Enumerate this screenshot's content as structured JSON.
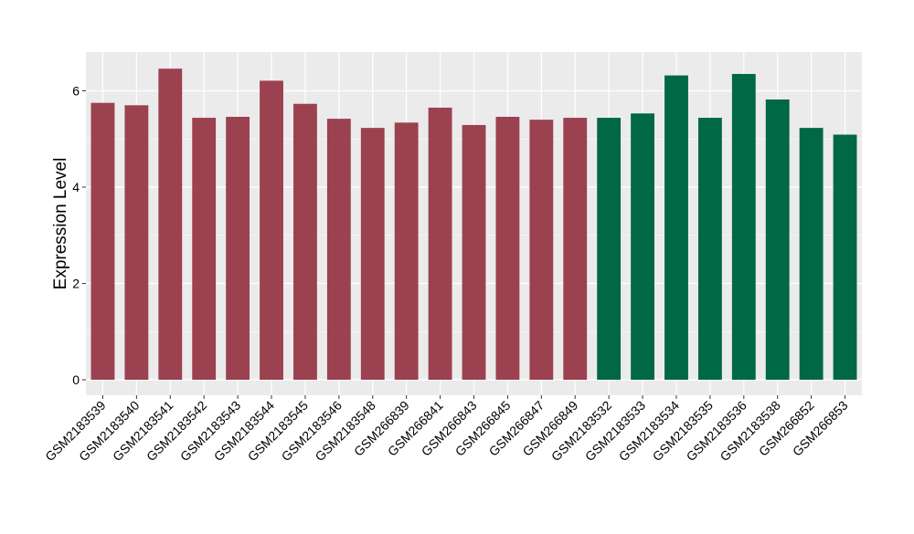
{
  "chart_data": {
    "type": "bar",
    "title": "",
    "xlabel": "",
    "ylabel": "Expression Level",
    "ylim": [
      0,
      6.8
    ],
    "yticks": [
      0,
      2,
      4,
      6
    ],
    "grid": true,
    "legend": "none",
    "background": "#ebebeb",
    "grid_color": "#ffffff",
    "categories": [
      "GSM2183539",
      "GSM2183540",
      "GSM2183541",
      "GSM2183542",
      "GSM2183543",
      "GSM2183544",
      "GSM2183545",
      "GSM2183546",
      "GSM2183548",
      "GSM266839",
      "GSM266841",
      "GSM266843",
      "GSM266845",
      "GSM266847",
      "GSM266849",
      "GSM2183532",
      "GSM2183533",
      "GSM2183534",
      "GSM2183535",
      "GSM2183536",
      "GSM2183538",
      "GSM266852",
      "GSM266853"
    ],
    "values": [
      5.75,
      5.7,
      6.46,
      5.44,
      5.46,
      6.21,
      5.73,
      5.42,
      5.23,
      5.34,
      5.65,
      5.29,
      5.46,
      5.4,
      5.44,
      5.44,
      5.53,
      6.32,
      5.44,
      6.35,
      5.82,
      5.23,
      5.09
    ],
    "groups": [
      "a",
      "a",
      "a",
      "a",
      "a",
      "a",
      "a",
      "a",
      "a",
      "a",
      "a",
      "a",
      "a",
      "a",
      "a",
      "b",
      "b",
      "b",
      "b",
      "b",
      "b",
      "b",
      "b"
    ],
    "group_colors": {
      "a": "#9b4150",
      "b": "#006845"
    }
  }
}
